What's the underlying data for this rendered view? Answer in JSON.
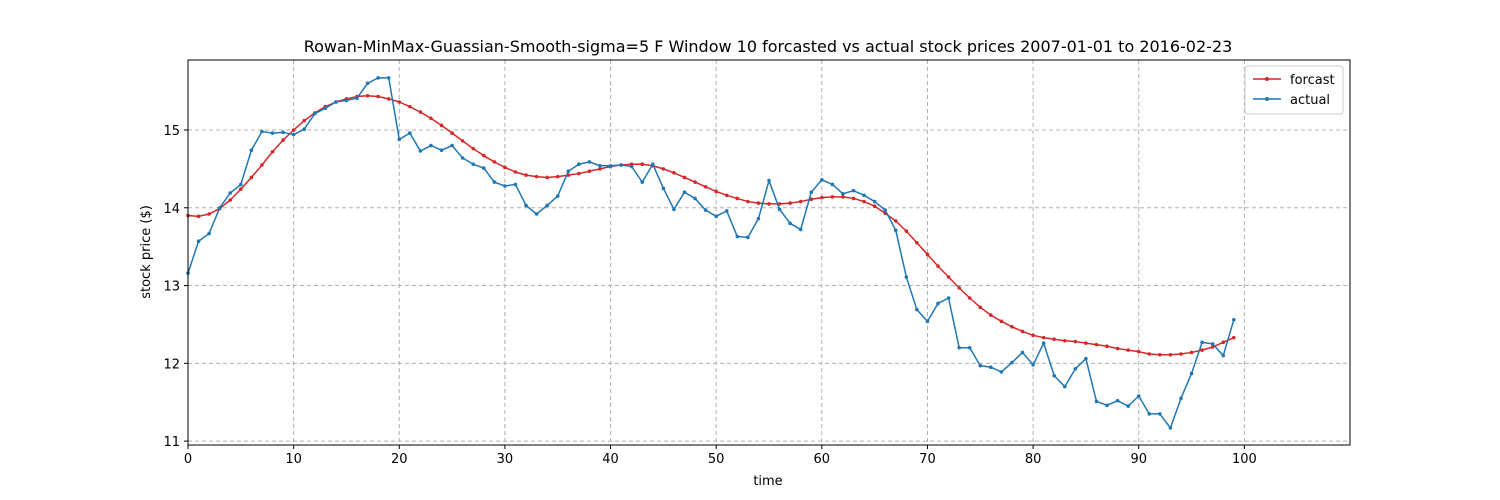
{
  "chart_data": {
    "type": "line",
    "title": "Rowan-MinMax-Guassian-Smooth-sigma=5 F Window 10 forcasted vs actual stock prices 2007-01-01 to 2016-02-23",
    "xlabel": "time",
    "ylabel": "stock price ($)",
    "xlim": [
      0,
      110
    ],
    "ylim": [
      10.95,
      15.9
    ],
    "xticks": [
      0,
      10,
      20,
      30,
      40,
      50,
      60,
      70,
      80,
      90,
      100
    ],
    "yticks": [
      11,
      12,
      13,
      14,
      15
    ],
    "grid": true,
    "legend_position": "top-right",
    "x": [
      0,
      1,
      2,
      3,
      4,
      5,
      6,
      7,
      8,
      9,
      10,
      11,
      12,
      13,
      14,
      15,
      16,
      17,
      18,
      19,
      20,
      21,
      22,
      23,
      24,
      25,
      26,
      27,
      28,
      29,
      30,
      31,
      32,
      33,
      34,
      35,
      36,
      37,
      38,
      39,
      40,
      41,
      42,
      43,
      44,
      45,
      46,
      47,
      48,
      49,
      50,
      51,
      52,
      53,
      54,
      55,
      56,
      57,
      58,
      59,
      60,
      61,
      62,
      63,
      64,
      65,
      66,
      67,
      68,
      69,
      70,
      71,
      72,
      73,
      74,
      75,
      76,
      77,
      78,
      79,
      80,
      81,
      82,
      83,
      84,
      85,
      86,
      87,
      88,
      89,
      90,
      91,
      92,
      93,
      94,
      95,
      96,
      97,
      98,
      99
    ],
    "series": [
      {
        "name": "forcast",
        "color": "#d62728",
        "values": [
          13.9,
          13.89,
          13.92,
          13.99,
          14.1,
          14.24,
          14.39,
          14.55,
          14.72,
          14.87,
          15.0,
          15.12,
          15.22,
          15.3,
          15.36,
          15.4,
          15.43,
          15.44,
          15.43,
          15.4,
          15.36,
          15.3,
          15.23,
          15.15,
          15.06,
          14.96,
          14.86,
          14.76,
          14.67,
          14.59,
          14.52,
          14.46,
          14.42,
          14.4,
          14.39,
          14.4,
          14.42,
          14.44,
          14.47,
          14.5,
          14.53,
          14.55,
          14.56,
          14.56,
          14.54,
          14.5,
          14.45,
          14.39,
          14.33,
          14.27,
          14.21,
          14.16,
          14.12,
          14.08,
          14.06,
          14.05,
          14.05,
          14.06,
          14.08,
          14.11,
          14.13,
          14.14,
          14.14,
          14.12,
          14.08,
          14.02,
          13.93,
          13.83,
          13.7,
          13.55,
          13.4,
          13.25,
          13.11,
          12.97,
          12.84,
          12.72,
          12.62,
          12.54,
          12.47,
          12.41,
          12.36,
          12.33,
          12.31,
          12.29,
          12.28,
          12.26,
          12.24,
          12.22,
          12.19,
          12.17,
          12.15,
          12.12,
          12.11,
          12.11,
          12.12,
          12.14,
          12.17,
          12.21,
          12.27,
          12.33
        ]
      },
      {
        "name": "actual",
        "color": "#1f77b4",
        "values": [
          13.16,
          13.57,
          13.67,
          14.0,
          14.19,
          14.3,
          14.74,
          14.98,
          14.96,
          14.97,
          14.94,
          15.01,
          15.21,
          15.28,
          15.36,
          15.38,
          15.41,
          15.6,
          15.67,
          15.67,
          14.88,
          14.96,
          14.73,
          14.8,
          14.74,
          14.8,
          14.64,
          14.56,
          14.51,
          14.33,
          14.28,
          14.3,
          14.03,
          13.92,
          14.03,
          14.15,
          14.47,
          14.56,
          14.59,
          14.54,
          14.54,
          14.55,
          14.53,
          14.33,
          14.56,
          14.25,
          13.98,
          14.2,
          14.12,
          13.97,
          13.89,
          13.96,
          13.63,
          13.62,
          13.86,
          14.35,
          13.98,
          13.8,
          13.72,
          14.2,
          14.36,
          14.3,
          14.18,
          14.22,
          14.16,
          14.08,
          13.97,
          13.71,
          13.11,
          12.69,
          12.54,
          12.77,
          12.84,
          12.2,
          12.2,
          11.97,
          11.95,
          11.89,
          12.01,
          12.14,
          11.98,
          12.26,
          11.84,
          11.7,
          11.93,
          12.06,
          11.51,
          11.46,
          11.52,
          11.45,
          11.58,
          11.35,
          11.35,
          11.17,
          11.55,
          11.87,
          12.27,
          12.25,
          12.1,
          12.56
        ]
      }
    ]
  }
}
